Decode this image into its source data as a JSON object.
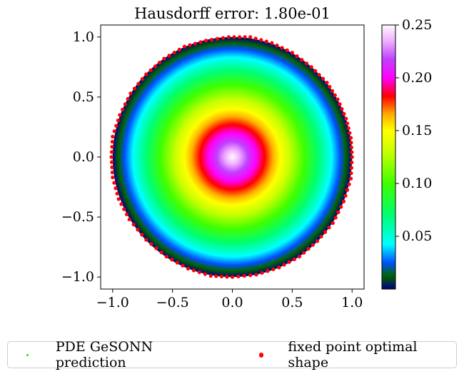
{
  "chart_data": {
    "type": "scatter",
    "title": "Hausdorff error: 1.80e-01",
    "xlabel": "",
    "ylabel": "",
    "xlim": [
      -1.1,
      1.1
    ],
    "ylim": [
      -1.1,
      1.1
    ],
    "x_ticks": [
      -1.0,
      -0.5,
      0.0,
      0.5,
      1.0
    ],
    "x_tick_labels": [
      "−1.0",
      "−0.5",
      "0.0",
      "0.5",
      "1.0"
    ],
    "y_ticks": [
      1.0,
      0.5,
      0.0,
      -0.5,
      -1.0
    ],
    "y_tick_labels": [
      "1.0",
      "0.5",
      "0.0",
      "−0.5",
      "−1.0"
    ],
    "grid": false,
    "colorbar": {
      "range": [
        0.0,
        0.25
      ],
      "ticks": [
        0.25,
        0.2,
        0.15,
        0.1,
        0.05
      ],
      "tick_labels": [
        "0.25",
        "0.20",
        "0.15",
        "0.10",
        "0.05"
      ],
      "colormap": "gist_ncar",
      "colormap_stops": [
        [
          0.0,
          "#000080"
        ],
        [
          0.05,
          "#006400"
        ],
        [
          0.1,
          "#0050ff"
        ],
        [
          0.17,
          "#00ffff"
        ],
        [
          0.28,
          "#00ff70"
        ],
        [
          0.4,
          "#40ff00"
        ],
        [
          0.52,
          "#c8ff00"
        ],
        [
          0.6,
          "#ffff00"
        ],
        [
          0.66,
          "#ffb000"
        ],
        [
          0.73,
          "#ff0000"
        ],
        [
          0.8,
          "#ff00ff"
        ],
        [
          0.87,
          "#c040ff"
        ],
        [
          0.94,
          "#f0b0ff"
        ],
        [
          1.0,
          "#fff8ff"
        ]
      ]
    },
    "series": [
      {
        "name": "PDE GeSONN prediction",
        "kind": "filled disk colored by value",
        "center": [
          0.0,
          0.0
        ],
        "radius": 1.0,
        "value_at_center": 0.25,
        "value_at_boundary": 0.0,
        "legend_color": "#33dd00"
      },
      {
        "name": "fixed point optimal shape",
        "kind": "boundary points",
        "color": "#ff0000",
        "shape": "approximately circular, radius 1.0, slightly irregular",
        "points": [
          [
            1.0,
            0.0
          ],
          [
            0.99,
            0.16
          ],
          [
            0.95,
            0.32
          ],
          [
            0.88,
            0.48
          ],
          [
            0.79,
            0.62
          ],
          [
            0.66,
            0.75
          ],
          [
            0.5,
            0.87
          ],
          [
            0.33,
            0.95
          ],
          [
            0.15,
            1.0
          ],
          [
            -0.03,
            1.0
          ],
          [
            -0.22,
            0.97
          ],
          [
            -0.4,
            0.92
          ],
          [
            -0.57,
            0.82
          ],
          [
            -0.72,
            0.69
          ],
          [
            -0.85,
            0.53
          ],
          [
            -0.94,
            0.35
          ],
          [
            -1.0,
            0.17
          ],
          [
            -1.01,
            0.0
          ],
          [
            -1.0,
            -0.17
          ],
          [
            -0.95,
            -0.35
          ],
          [
            -0.86,
            -0.52
          ],
          [
            -0.72,
            -0.69
          ],
          [
            -0.55,
            -0.83
          ],
          [
            -0.37,
            -0.93
          ],
          [
            -0.18,
            -0.99
          ],
          [
            0.0,
            -1.0
          ],
          [
            0.2,
            -0.98
          ],
          [
            0.39,
            -0.92
          ],
          [
            0.56,
            -0.83
          ],
          [
            0.71,
            -0.7
          ],
          [
            0.84,
            -0.55
          ],
          [
            0.93,
            -0.37
          ],
          [
            0.99,
            -0.18
          ]
        ]
      }
    ],
    "legend": {
      "placement": "bottom, below plot",
      "entries": [
        "PDE GeSONN prediction",
        "fixed point optimal shape"
      ]
    }
  }
}
